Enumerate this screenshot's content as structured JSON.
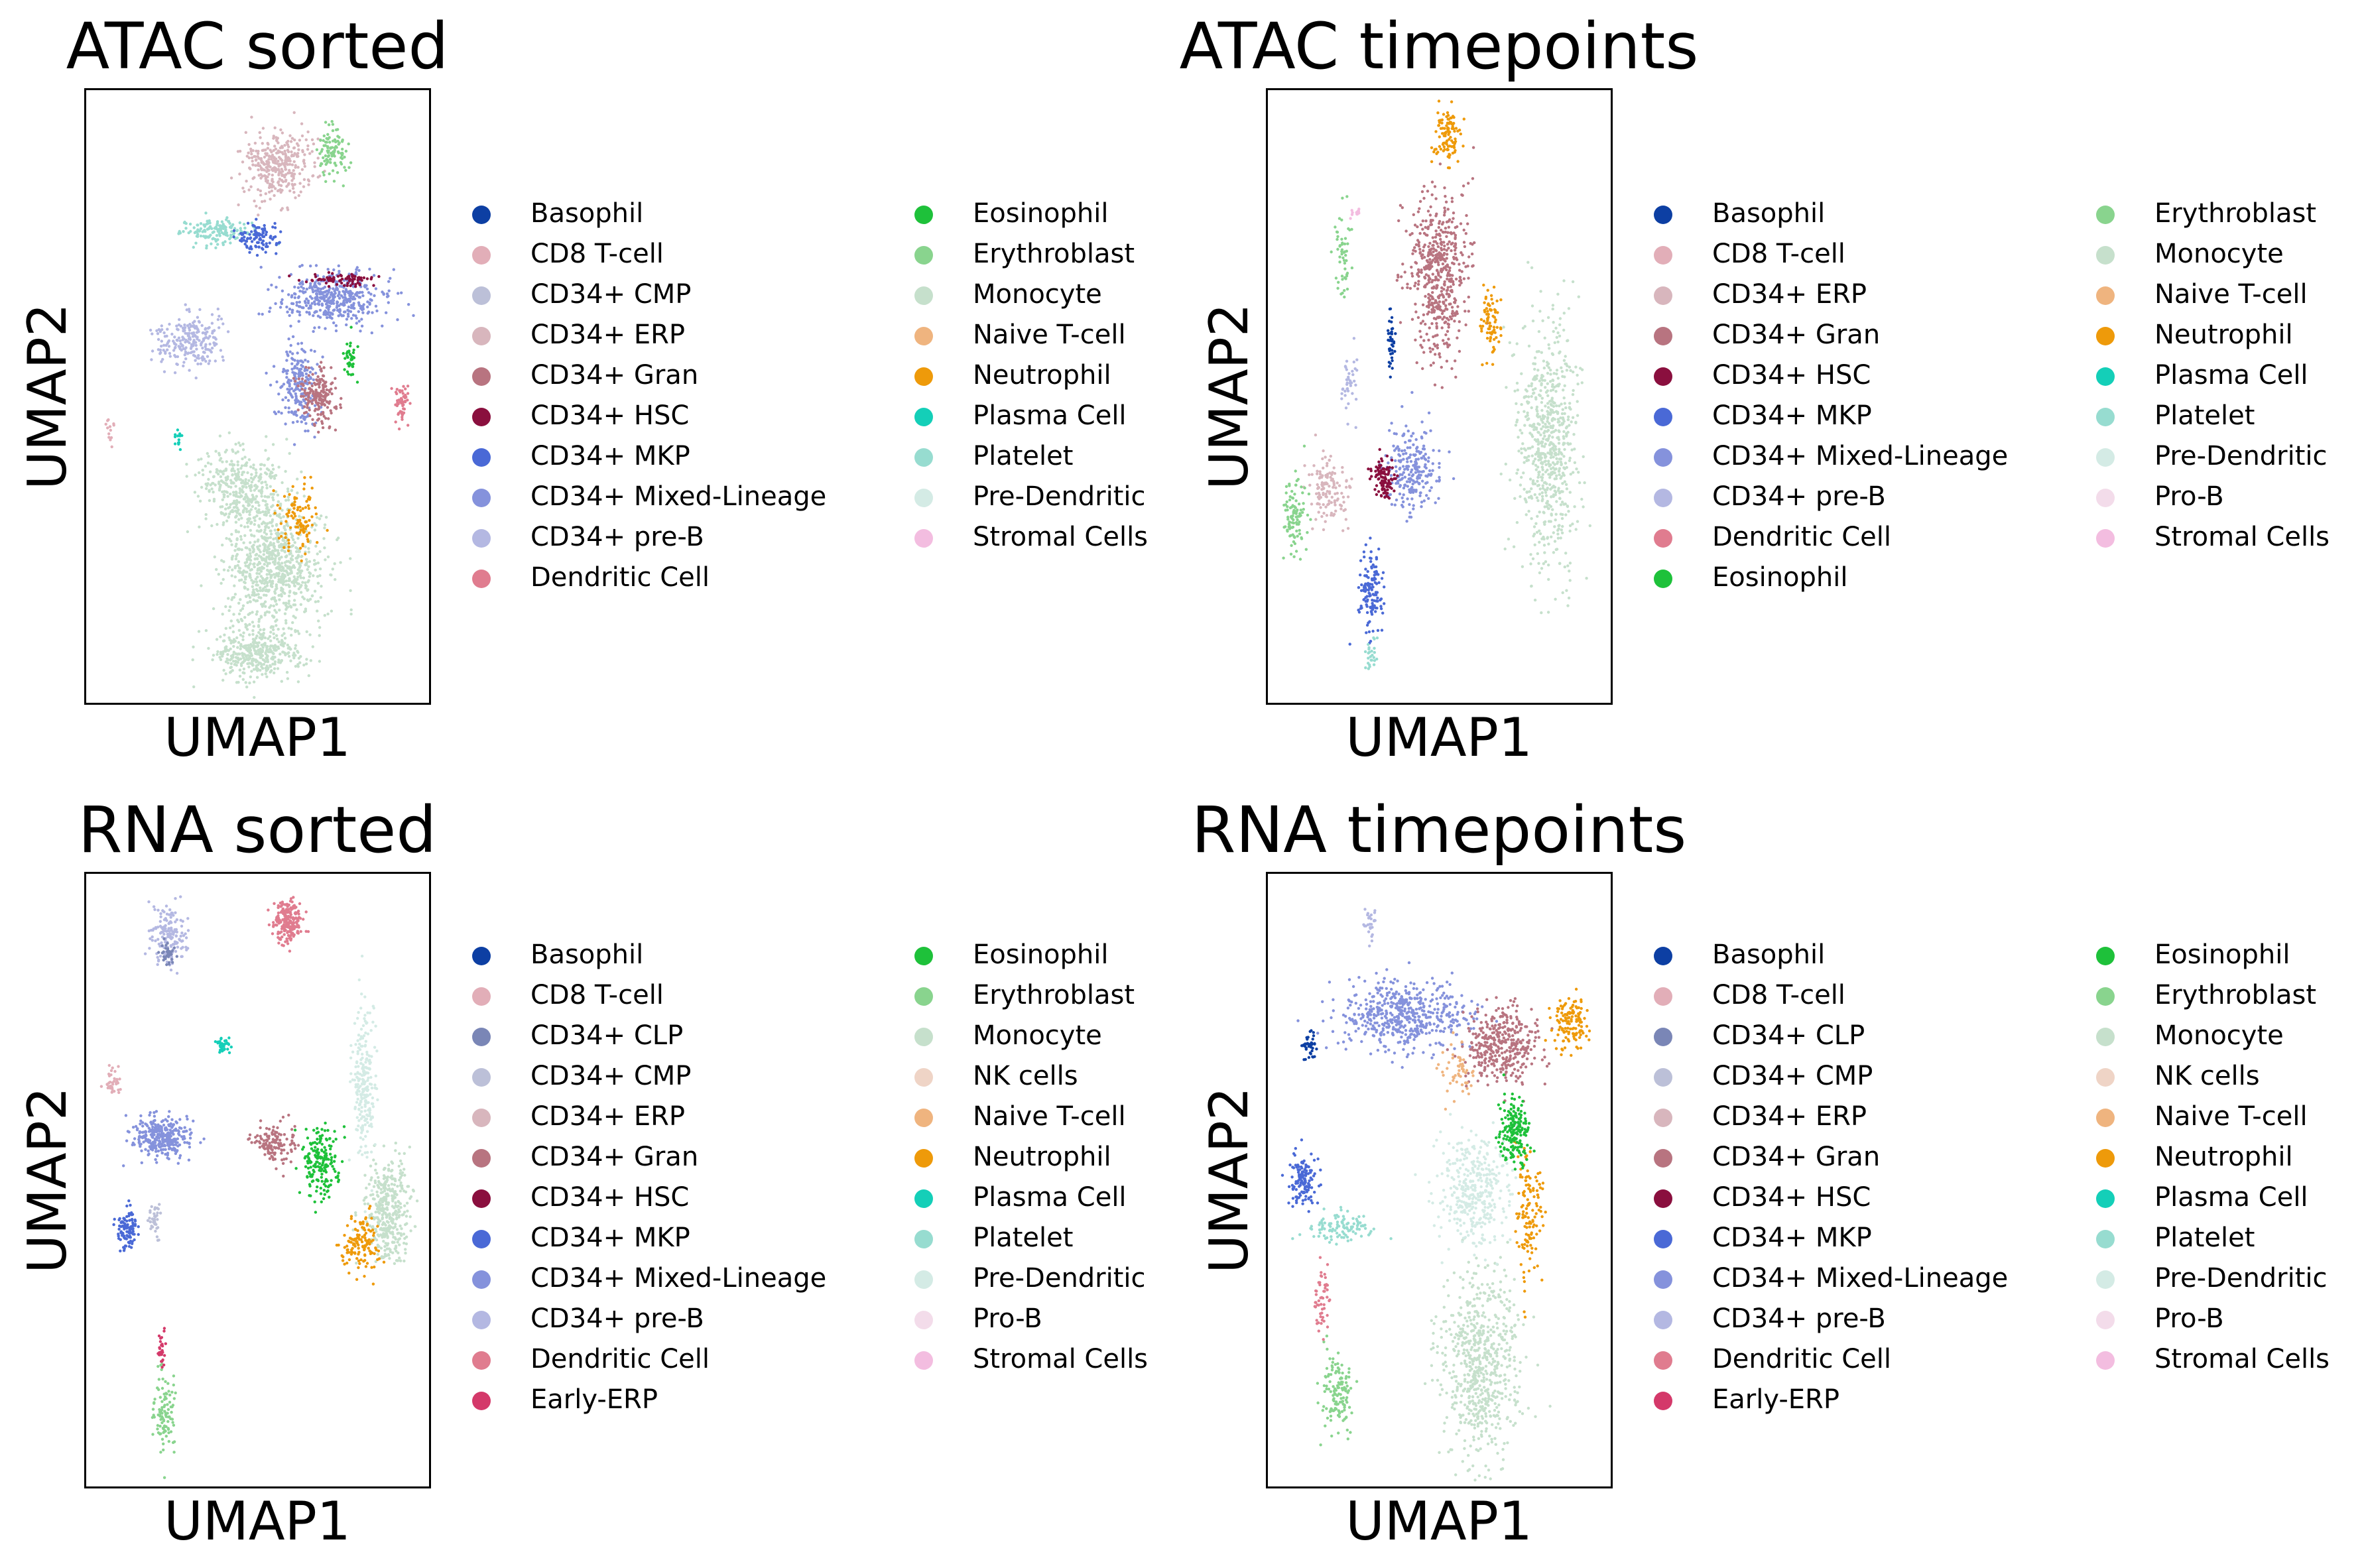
{
  "colors": {
    "Basophil": "#0d3fa3",
    "CD8 T-cell": "#e2aeb8",
    "CD34+ CLP": "#7a86b6",
    "CD34+ CMP": "#bcc0d8",
    "CD34+ ERP": "#d8b6bd",
    "CD34+ Gran": "#b87480",
    "CD34+ HSC": "#8a0f3e",
    "CD34+ MKP": "#4a69d6",
    "CD34+ Mixed-Lineage": "#8592dc",
    "CD34+ pre-B": "#b4b8e2",
    "Dendritic Cell": "#e07c8f",
    "Early-ERP": "#d4396a",
    "Eosinophil": "#1ec13a",
    "Erythroblast": "#89d48e",
    "Monocyte": "#c6e0cc",
    "NK cells": "#efd4c6",
    "Naive T-cell": "#efb47f",
    "Neutrophil": "#ee9a0a",
    "Plasma Cell": "#14cfb8",
    "Platelet": "#97dcd0",
    "Pre-Dendritic": "#d4ebe5",
    "Pro-B": "#f3dcea",
    "Stromal Cells": "#f3bde0"
  },
  "chart_data": [
    {
      "type": "scatter",
      "title": "ATAC sorted",
      "xlabel": "UMAP1",
      "ylabel": "UMAP2",
      "legend": {
        "placement": "right",
        "columns": [
          [
            "Basophil",
            "CD8 T-cell",
            "CD34+ CMP",
            "CD34+ ERP",
            "CD34+ Gran",
            "CD34+ HSC",
            "CD34+ MKP",
            "CD34+ Mixed-Lineage",
            "CD34+ pre-B",
            "Dendritic Cell"
          ],
          [
            "Eosinophil",
            "Erythroblast",
            "Monocyte",
            "Naive T-cell",
            "Neutrophil",
            "Plasma Cell",
            "Platelet",
            "Pre-Dendritic",
            "Stromal Cells"
          ]
        ]
      },
      "clusters": [
        {
          "label": "Monocyte",
          "x": 0.55,
          "y": 0.22,
          "sx": 0.13,
          "sy": 0.09,
          "w": 3.0
        },
        {
          "label": "Monocyte",
          "x": 0.5,
          "y": 0.08,
          "sx": 0.12,
          "sy": 0.04,
          "w": 1.5
        },
        {
          "label": "Monocyte",
          "x": 0.45,
          "y": 0.35,
          "sx": 0.12,
          "sy": 0.06,
          "w": 1.5
        },
        {
          "label": "Neutrophil",
          "x": 0.62,
          "y": 0.3,
          "sx": 0.06,
          "sy": 0.05,
          "w": 0.4
        },
        {
          "label": "CD34+ ERP",
          "x": 0.56,
          "y": 0.88,
          "sx": 0.09,
          "sy": 0.05,
          "w": 1.3
        },
        {
          "label": "Erythroblast",
          "x": 0.72,
          "y": 0.9,
          "sx": 0.04,
          "sy": 0.04,
          "w": 0.4
        },
        {
          "label": "Platelet",
          "x": 0.38,
          "y": 0.77,
          "sx": 0.1,
          "sy": 0.02,
          "w": 0.6
        },
        {
          "label": "CD34+ MKP",
          "x": 0.5,
          "y": 0.76,
          "sx": 0.05,
          "sy": 0.02,
          "w": 0.4
        },
        {
          "label": "CD34+ Mixed-Lineage",
          "x": 0.72,
          "y": 0.66,
          "sx": 0.15,
          "sy": 0.04,
          "w": 1.6
        },
        {
          "label": "CD34+ Mixed-Lineage",
          "x": 0.62,
          "y": 0.52,
          "sx": 0.05,
          "sy": 0.06,
          "w": 0.8
        },
        {
          "label": "CD34+ HSC",
          "x": 0.74,
          "y": 0.69,
          "sx": 0.08,
          "sy": 0.01,
          "w": 0.3
        },
        {
          "label": "CD34+ pre-B",
          "x": 0.3,
          "y": 0.59,
          "sx": 0.09,
          "sy": 0.04,
          "w": 0.9
        },
        {
          "label": "CD34+ Gran",
          "x": 0.68,
          "y": 0.5,
          "sx": 0.05,
          "sy": 0.04,
          "w": 0.7
        },
        {
          "label": "Dendritic Cell",
          "x": 0.92,
          "y": 0.49,
          "sx": 0.02,
          "sy": 0.03,
          "w": 0.2
        },
        {
          "label": "CD8 T-cell",
          "x": 0.07,
          "y": 0.45,
          "sx": 0.01,
          "sy": 0.02,
          "w": 0.05
        },
        {
          "label": "Plasma Cell",
          "x": 0.27,
          "y": 0.43,
          "sx": 0.01,
          "sy": 0.01,
          "w": 0.05
        },
        {
          "label": "Eosinophil",
          "x": 0.77,
          "y": 0.56,
          "sx": 0.02,
          "sy": 0.03,
          "w": 0.15
        }
      ]
    },
    {
      "type": "scatter",
      "title": "ATAC timepoints",
      "xlabel": "UMAP1",
      "ylabel": "UMAP2",
      "legend": {
        "placement": "right",
        "columns": [
          [
            "Basophil",
            "CD8 T-cell",
            "CD34+ ERP",
            "CD34+ Gran",
            "CD34+ HSC",
            "CD34+ MKP",
            "CD34+ Mixed-Lineage",
            "CD34+ pre-B",
            "Dendritic Cell",
            "Eosinophil"
          ],
          [
            "Erythroblast",
            "Monocyte",
            "Naive T-cell",
            "Neutrophil",
            "Plasma Cell",
            "Platelet",
            "Pre-Dendritic",
            "Pro-B",
            "Stromal Cells"
          ]
        ]
      },
      "clusters": [
        {
          "label": "Monocyte",
          "x": 0.82,
          "y": 0.42,
          "sx": 0.08,
          "sy": 0.18,
          "w": 2.6
        },
        {
          "label": "CD34+ Gran",
          "x": 0.5,
          "y": 0.7,
          "sx": 0.08,
          "sy": 0.12,
          "w": 2.0
        },
        {
          "label": "Neutrophil",
          "x": 0.52,
          "y": 0.93,
          "sx": 0.04,
          "sy": 0.04,
          "w": 0.4
        },
        {
          "label": "Neutrophil",
          "x": 0.65,
          "y": 0.62,
          "sx": 0.03,
          "sy": 0.05,
          "w": 0.3
        },
        {
          "label": "CD34+ Mixed-Lineage",
          "x": 0.42,
          "y": 0.38,
          "sx": 0.07,
          "sy": 0.06,
          "w": 0.9
        },
        {
          "label": "CD34+ HSC",
          "x": 0.34,
          "y": 0.37,
          "sx": 0.03,
          "sy": 0.03,
          "w": 0.4
        },
        {
          "label": "CD34+ MKP",
          "x": 0.3,
          "y": 0.18,
          "sx": 0.03,
          "sy": 0.07,
          "w": 0.5
        },
        {
          "label": "Basophil",
          "x": 0.36,
          "y": 0.58,
          "sx": 0.01,
          "sy": 0.05,
          "w": 0.15
        },
        {
          "label": "CD34+ ERP",
          "x": 0.18,
          "y": 0.34,
          "sx": 0.05,
          "sy": 0.05,
          "w": 0.5
        },
        {
          "label": "Erythroblast",
          "x": 0.08,
          "y": 0.3,
          "sx": 0.03,
          "sy": 0.05,
          "w": 0.4
        },
        {
          "label": "Erythroblast",
          "x": 0.22,
          "y": 0.72,
          "sx": 0.02,
          "sy": 0.07,
          "w": 0.2
        },
        {
          "label": "CD34+ pre-B",
          "x": 0.24,
          "y": 0.52,
          "sx": 0.02,
          "sy": 0.05,
          "w": 0.15
        },
        {
          "label": "Platelet",
          "x": 0.3,
          "y": 0.08,
          "sx": 0.03,
          "sy": 0.03,
          "w": 0.1
        },
        {
          "label": "Stromal Cells",
          "x": 0.26,
          "y": 0.8,
          "sx": 0.02,
          "sy": 0.01,
          "w": 0.05
        }
      ]
    },
    {
      "type": "scatter",
      "title": "RNA sorted",
      "xlabel": "UMAP1",
      "ylabel": "UMAP2",
      "legend": {
        "placement": "right",
        "columns": [
          [
            "Basophil",
            "CD8 T-cell",
            "CD34+ CLP",
            "CD34+ CMP",
            "CD34+ ERP",
            "CD34+ Gran",
            "CD34+ HSC",
            "CD34+ MKP",
            "CD34+ Mixed-Lineage",
            "CD34+ pre-B",
            "Dendritic Cell",
            "Early-ERP"
          ],
          [
            "Eosinophil",
            "Erythroblast",
            "Monocyte",
            "NK cells",
            "Naive T-cell",
            "Neutrophil",
            "Plasma Cell",
            "Platelet",
            "Pre-Dendritic",
            "Pro-B",
            "Stromal Cells"
          ]
        ]
      },
      "clusters": [
        {
          "label": "Dendritic Cell",
          "x": 0.59,
          "y": 0.92,
          "sx": 0.04,
          "sy": 0.03,
          "w": 0.8
        },
        {
          "label": "CD34+ pre-B",
          "x": 0.24,
          "y": 0.9,
          "sx": 0.05,
          "sy": 0.04,
          "w": 0.6
        },
        {
          "label": "CD34+ CLP",
          "x": 0.24,
          "y": 0.87,
          "sx": 0.02,
          "sy": 0.02,
          "w": 0.15
        },
        {
          "label": "Plasma Cell",
          "x": 0.4,
          "y": 0.72,
          "sx": 0.02,
          "sy": 0.01,
          "w": 0.15
        },
        {
          "label": "CD34+ Mixed-Lineage",
          "x": 0.22,
          "y": 0.57,
          "sx": 0.08,
          "sy": 0.03,
          "w": 1.2
        },
        {
          "label": "CD34+ MKP",
          "x": 0.12,
          "y": 0.42,
          "sx": 0.03,
          "sy": 0.03,
          "w": 0.4
        },
        {
          "label": "Erythroblast",
          "x": 0.23,
          "y": 0.12,
          "sx": 0.03,
          "sy": 0.06,
          "w": 0.4
        },
        {
          "label": "CD34+ Gran",
          "x": 0.55,
          "y": 0.56,
          "sx": 0.06,
          "sy": 0.03,
          "w": 0.5
        },
        {
          "label": "Eosinophil",
          "x": 0.68,
          "y": 0.53,
          "sx": 0.05,
          "sy": 0.05,
          "w": 0.7
        },
        {
          "label": "Monocyte",
          "x": 0.88,
          "y": 0.45,
          "sx": 0.06,
          "sy": 0.08,
          "w": 1.5
        },
        {
          "label": "Pre-Dendritic",
          "x": 0.81,
          "y": 0.66,
          "sx": 0.03,
          "sy": 0.12,
          "w": 0.9
        },
        {
          "label": "Neutrophil",
          "x": 0.8,
          "y": 0.4,
          "sx": 0.05,
          "sy": 0.04,
          "w": 0.5
        },
        {
          "label": "CD8 T-cell",
          "x": 0.08,
          "y": 0.66,
          "sx": 0.02,
          "sy": 0.02,
          "w": 0.15
        },
        {
          "label": "Early-ERP",
          "x": 0.22,
          "y": 0.23,
          "sx": 0.01,
          "sy": 0.04,
          "w": 0.1
        },
        {
          "label": "CD34+ CMP",
          "x": 0.2,
          "y": 0.44,
          "sx": 0.02,
          "sy": 0.03,
          "w": 0.15
        }
      ]
    },
    {
      "type": "scatter",
      "title": "RNA timepoints",
      "xlabel": "UMAP1",
      "ylabel": "UMAP2",
      "legend": {
        "placement": "right",
        "columns": [
          [
            "Basophil",
            "CD8 T-cell",
            "CD34+ CLP",
            "CD34+ CMP",
            "CD34+ ERP",
            "CD34+ Gran",
            "CD34+ HSC",
            "CD34+ MKP",
            "CD34+ Mixed-Lineage",
            "CD34+ pre-B",
            "Dendritic Cell",
            "Early-ERP"
          ],
          [
            "Eosinophil",
            "Erythroblast",
            "Monocyte",
            "NK cells",
            "Naive T-cell",
            "Neutrophil",
            "Plasma Cell",
            "Platelet",
            "Pre-Dendritic",
            "Pro-B",
            "Stromal Cells"
          ]
        ]
      },
      "clusters": [
        {
          "label": "Monocyte",
          "x": 0.62,
          "y": 0.2,
          "sx": 0.1,
          "sy": 0.14,
          "w": 2.6
        },
        {
          "label": "Pre-Dendritic",
          "x": 0.6,
          "y": 0.48,
          "sx": 0.09,
          "sy": 0.08,
          "w": 1.4
        },
        {
          "label": "CD34+ Mixed-Lineage",
          "x": 0.4,
          "y": 0.77,
          "sx": 0.17,
          "sy": 0.05,
          "w": 2.0
        },
        {
          "label": "CD34+ Gran",
          "x": 0.68,
          "y": 0.72,
          "sx": 0.1,
          "sy": 0.06,
          "w": 1.4
        },
        {
          "label": "Neutrophil",
          "x": 0.88,
          "y": 0.75,
          "sx": 0.05,
          "sy": 0.04,
          "w": 0.5
        },
        {
          "label": "Neutrophil",
          "x": 0.76,
          "y": 0.45,
          "sx": 0.04,
          "sy": 0.1,
          "w": 0.5
        },
        {
          "label": "Eosinophil",
          "x": 0.72,
          "y": 0.58,
          "sx": 0.04,
          "sy": 0.05,
          "w": 0.7
        },
        {
          "label": "CD34+ MKP",
          "x": 0.1,
          "y": 0.5,
          "sx": 0.04,
          "sy": 0.04,
          "w": 0.5
        },
        {
          "label": "Platelet",
          "x": 0.22,
          "y": 0.42,
          "sx": 0.08,
          "sy": 0.02,
          "w": 0.4
        },
        {
          "label": "Erythroblast",
          "x": 0.2,
          "y": 0.15,
          "sx": 0.04,
          "sy": 0.06,
          "w": 0.5
        },
        {
          "label": "Dendritic Cell",
          "x": 0.16,
          "y": 0.3,
          "sx": 0.02,
          "sy": 0.05,
          "w": 0.2
        },
        {
          "label": "Basophil",
          "x": 0.12,
          "y": 0.72,
          "sx": 0.02,
          "sy": 0.02,
          "w": 0.15
        },
        {
          "label": "Naive T-cell",
          "x": 0.55,
          "y": 0.68,
          "sx": 0.04,
          "sy": 0.04,
          "w": 0.2
        },
        {
          "label": "CD34+ pre-B",
          "x": 0.3,
          "y": 0.92,
          "sx": 0.02,
          "sy": 0.03,
          "w": 0.1
        }
      ]
    }
  ]
}
